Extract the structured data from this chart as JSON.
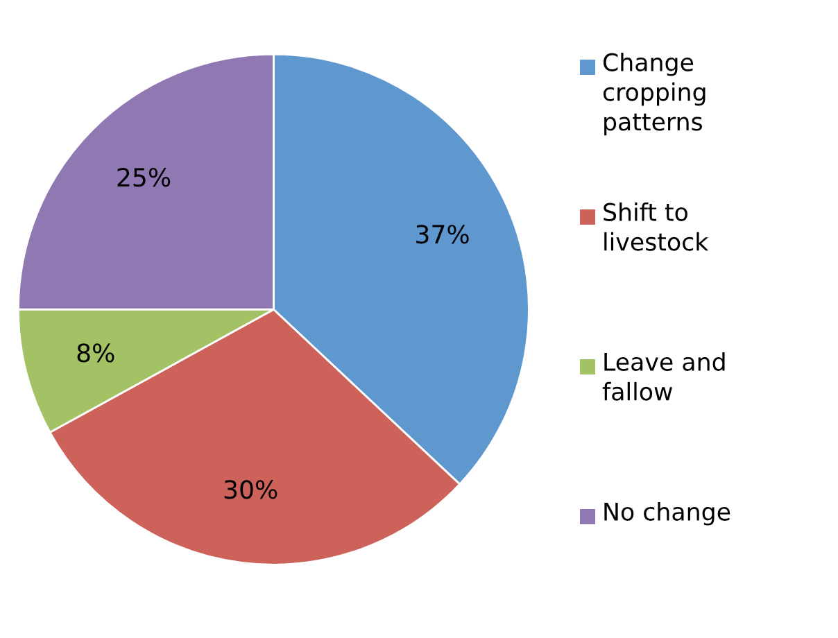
{
  "chart_data": {
    "type": "pie",
    "categories": [
      "Change\ncropping\npatterns",
      "Shift to\nlivestock",
      "Leave and\nfallow",
      "No change"
    ],
    "values": [
      37,
      30,
      8,
      25
    ],
    "colors": [
      "#5f97cf",
      "#cd625a",
      "#a3c165",
      "#9078b3"
    ],
    "value_labels": [
      "37%",
      "30%",
      "8%",
      "25%"
    ],
    "legend": "right"
  }
}
